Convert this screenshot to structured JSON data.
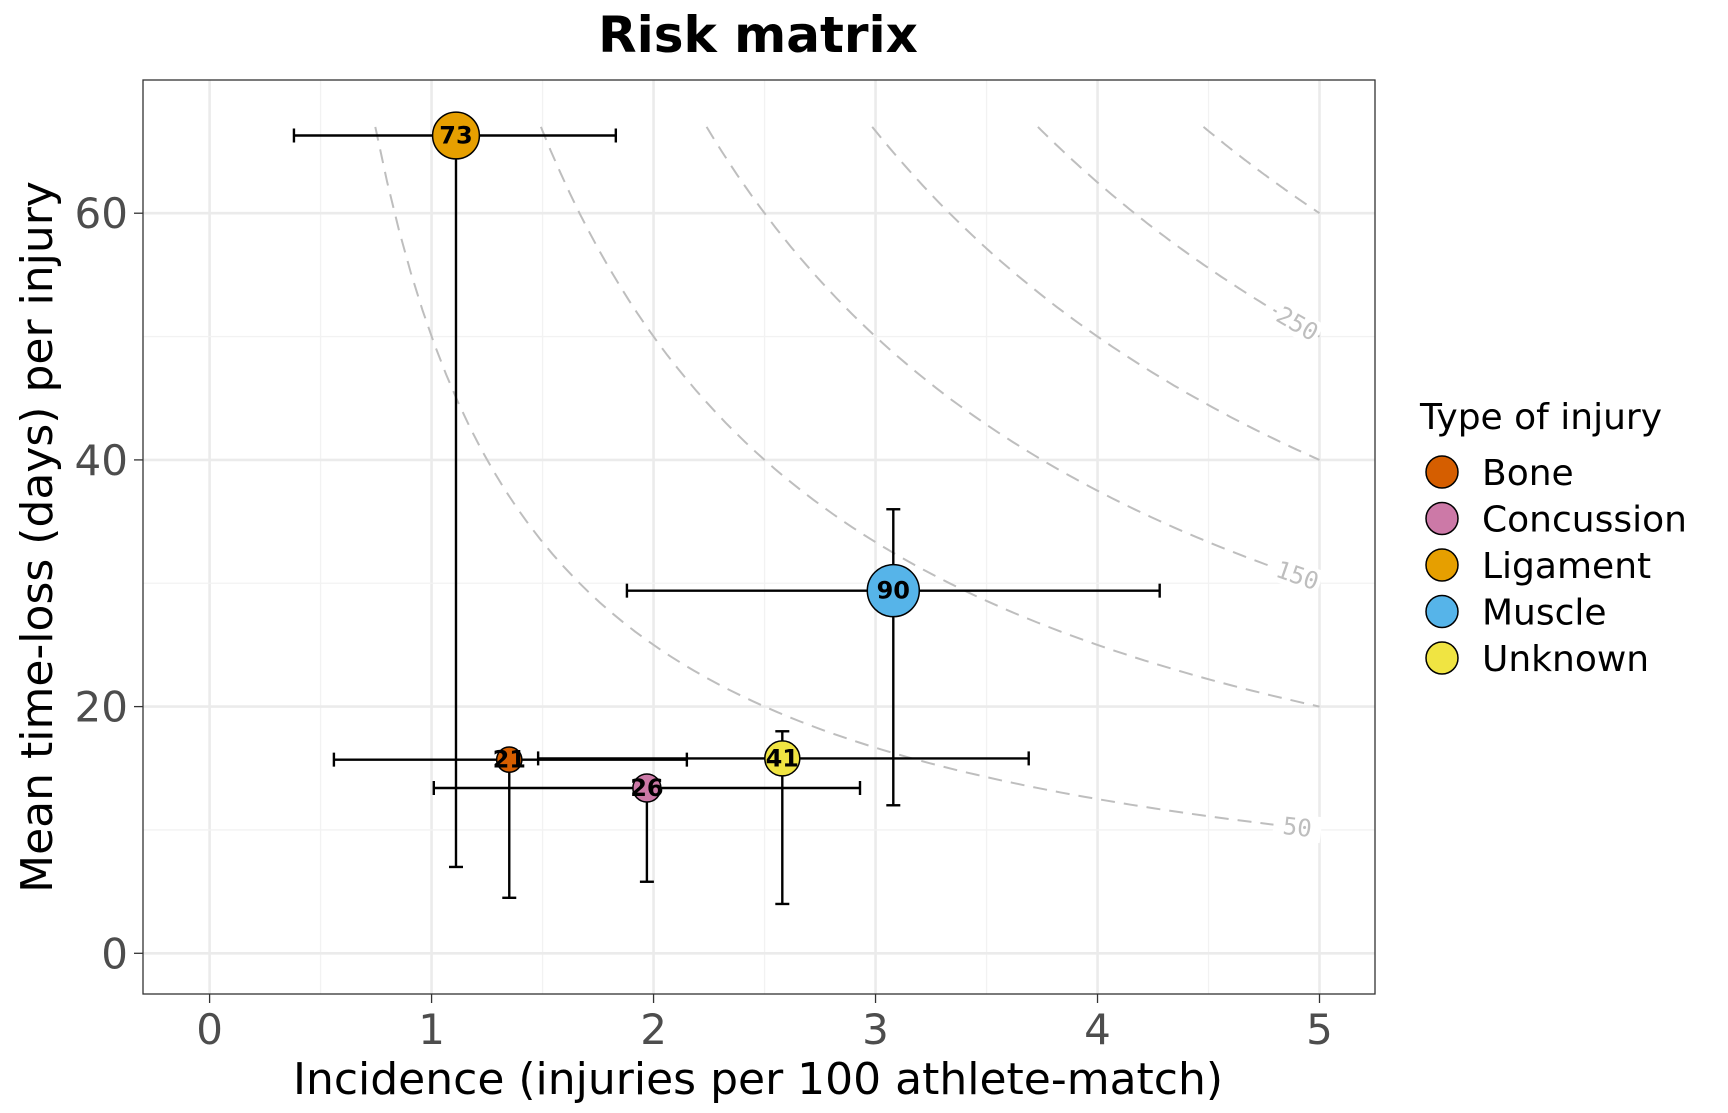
{
  "chart_data": {
    "type": "scatter",
    "title": "Risk matrix",
    "xlabel": "Incidence (injuries per 100 athlete-match)",
    "ylabel": "Mean time-loss (days) per injury",
    "xlim": [
      -0.3,
      5.25
    ],
    "ylim": [
      -3.3,
      70.8
    ],
    "x_ticks": [
      0,
      1,
      2,
      3,
      4,
      5
    ],
    "y_ticks": [
      0,
      20,
      40,
      60
    ],
    "grid": true,
    "legend": {
      "title": "Type of injury",
      "placement": "right",
      "entries": [
        {
          "name": "Bone",
          "color": "#D55E00"
        },
        {
          "name": "Concussion",
          "color": "#CC79A7"
        },
        {
          "name": "Ligament",
          "color": "#E69F00"
        },
        {
          "name": "Muscle",
          "color": "#56B4E9"
        },
        {
          "name": "Unknown",
          "color": "#F0E442"
        }
      ]
    },
    "points": [
      {
        "name": "Ligament",
        "label": "73",
        "x": 1.11,
        "y": 66.3,
        "x_err": [
          0.38,
          1.83
        ],
        "y_err": [
          7.0,
          66.3
        ],
        "size": 73,
        "color": "#E69F00"
      },
      {
        "name": "Muscle",
        "label": "90",
        "x": 3.08,
        "y": 29.4,
        "x_err": [
          1.88,
          4.28
        ],
        "y_err": [
          12.0,
          36.0
        ],
        "size": 90,
        "color": "#56B4E9"
      },
      {
        "name": "Unknown",
        "label": "41",
        "x": 2.58,
        "y": 15.8,
        "x_err": [
          1.48,
          3.69
        ],
        "y_err": [
          4.0,
          18.0
        ],
        "size": 41,
        "color": "#F0E442"
      },
      {
        "name": "Concussion",
        "label": "26",
        "x": 1.97,
        "y": 13.4,
        "x_err": [
          1.01,
          2.93
        ],
        "y_err": [
          5.8,
          13.4
        ],
        "size": 26,
        "color": "#CC79A7"
      },
      {
        "name": "Bone",
        "label": "21",
        "x": 1.35,
        "y": 15.7,
        "x_err": [
          0.56,
          2.15
        ],
        "y_err": [
          4.5,
          15.7
        ],
        "size": 21,
        "color": "#D55E00"
      }
    ],
    "contours": {
      "levels": [
        50,
        100,
        150,
        200,
        250,
        300
      ],
      "labels": [
        "50",
        "150",
        "250"
      ],
      "color": "#bebebe"
    }
  }
}
